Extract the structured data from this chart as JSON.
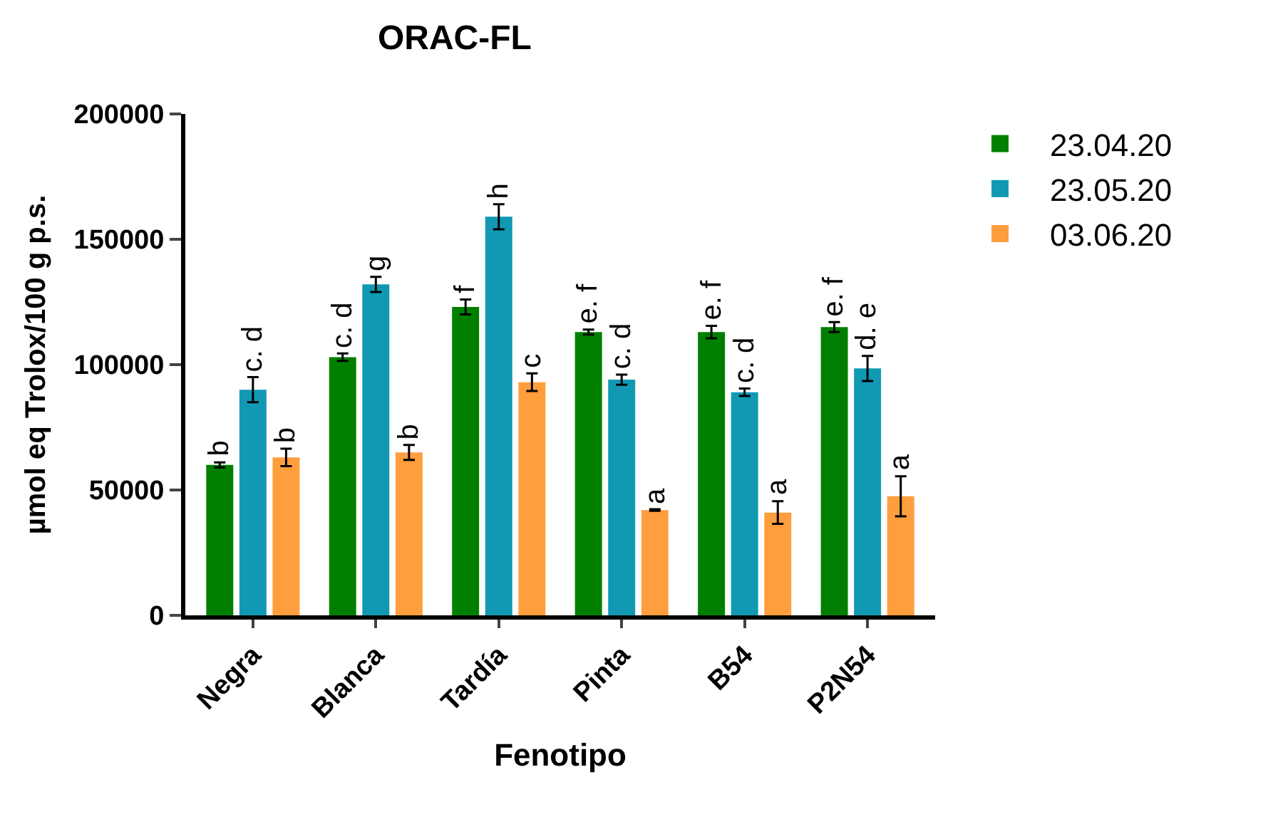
{
  "chart_data": {
    "type": "bar",
    "title": "ORAC-FL",
    "xlabel": "Fenotipo",
    "ylabel": "µmol eq Trolox/100 g p.s.",
    "categories": [
      "Negra",
      "Blanca",
      "Tardía",
      "Pinta",
      "B54",
      "P2N54"
    ],
    "series": [
      {
        "name": "23.04.20",
        "color": "#007f00",
        "values": [
          60000,
          103000,
          123000,
          113000,
          113000,
          115000
        ],
        "errors": [
          1000,
          1500,
          3000,
          1000,
          2500,
          2000
        ],
        "value_labels": [
          "b",
          "c. d",
          "f",
          "e. f",
          "e. f",
          "e. f"
        ]
      },
      {
        "name": "23.05.20",
        "color": "#1199b4",
        "values": [
          90000,
          132000,
          159000,
          94000,
          89000,
          98500
        ],
        "errors": [
          5000,
          3000,
          5000,
          2000,
          1500,
          5000
        ],
        "value_labels": [
          "c. d",
          "g",
          "h",
          "c. d",
          "c. d",
          "d. e"
        ]
      },
      {
        "name": "03.06.20",
        "color": "#ff9e3d",
        "values": [
          63000,
          65000,
          93000,
          42000,
          41000,
          47500
        ],
        "errors": [
          3500,
          3000,
          3500,
          300,
          4500,
          8000
        ],
        "value_labels": [
          "b",
          "b",
          "c",
          "a",
          "a",
          "a"
        ]
      }
    ],
    "ylim": [
      0,
      200000
    ],
    "yticks": [
      0,
      50000,
      100000,
      150000,
      200000
    ],
    "legend": "top right"
  }
}
